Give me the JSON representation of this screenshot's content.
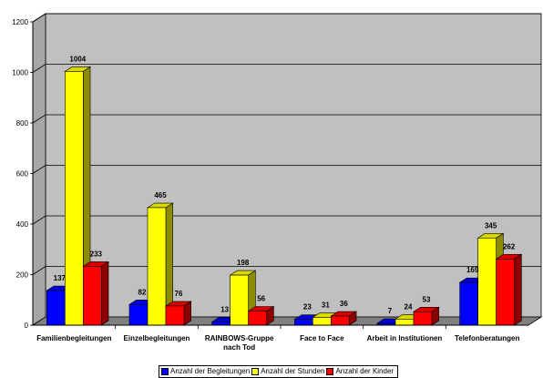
{
  "chart_data": {
    "type": "bar",
    "categories": [
      [
        "Familienbegleitungen"
      ],
      [
        "Einzelbegleitungen"
      ],
      [
        "RAINBOWS-Gruppe",
        "nach Tod"
      ],
      [
        "Face to Face"
      ],
      [
        "Arbeit in Institutionen"
      ],
      [
        "Telefonberatungen"
      ]
    ],
    "series": [
      {
        "name": "Anzahl der Begleitungen",
        "color": "#0000ff",
        "values": [
          137,
          82,
          13,
          23,
          7,
          169
        ]
      },
      {
        "name": "Anzahl der Stunden",
        "color": "#ffff00",
        "values": [
          1004,
          465,
          198,
          31,
          24,
          345
        ]
      },
      {
        "name": "Anzahl der Kinder",
        "color": "#ff0000",
        "values": [
          233,
          76,
          56,
          36,
          53,
          262
        ]
      }
    ],
    "yticks": [
      "0",
      "200",
      "400",
      "600",
      "800",
      "1000",
      "1200"
    ],
    "ylim": [
      0,
      1200
    ],
    "grid": true,
    "background_color": "#c0c0c0",
    "legend_position": "bottom",
    "style": "3d-clustered-bar"
  }
}
